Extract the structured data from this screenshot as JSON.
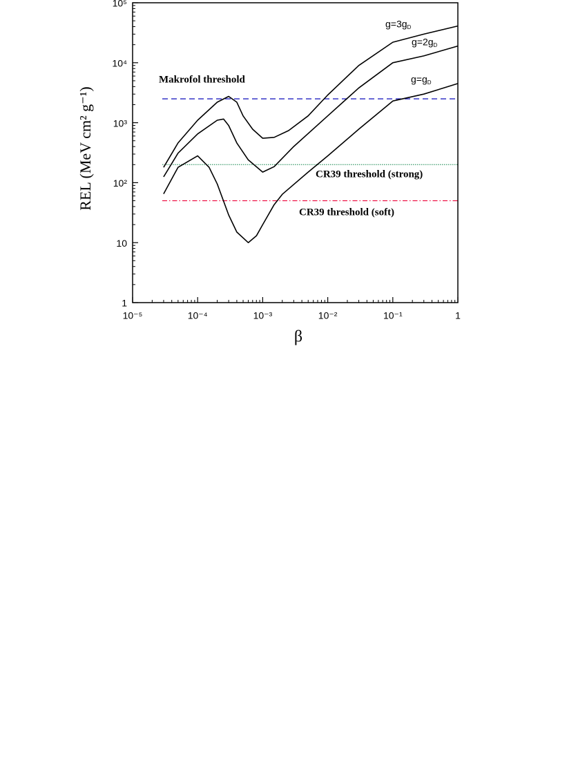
{
  "chart_data": {
    "type": "line",
    "xlabel": "β",
    "ylabel": "REL (MeV cm² g⁻¹)",
    "log_x": true,
    "log_y": true,
    "xlim": [
      1e-05,
      1
    ],
    "ylim": [
      1,
      100000
    ],
    "xticks": [
      {
        "value": 1e-05,
        "label": "10⁻⁵"
      },
      {
        "value": 0.0001,
        "label": "10⁻⁴"
      },
      {
        "value": 0.001,
        "label": "10⁻³"
      },
      {
        "value": 0.01,
        "label": "10⁻²"
      },
      {
        "value": 0.1,
        "label": "10⁻¹"
      },
      1
    ],
    "yticks": [
      1,
      10,
      {
        "value": 100,
        "label": "10²"
      },
      {
        "value": 1000,
        "label": "10³"
      },
      {
        "value": 10000,
        "label": "10⁴"
      },
      {
        "value": 100000,
        "label": "10⁵"
      }
    ],
    "series": [
      {
        "name": "g=3gD",
        "color": "#000000",
        "x": [
          3e-05,
          5e-05,
          0.0001,
          0.0002,
          0.0003,
          0.0004,
          0.0005,
          0.0007,
          0.001,
          0.0015,
          0.0025,
          0.005,
          0.01,
          0.03,
          0.1,
          0.3,
          1
        ],
        "values": [
          180,
          460,
          1100,
          2200,
          2750,
          2200,
          1300,
          780,
          550,
          570,
          740,
          1300,
          2900,
          9000,
          22000,
          30000,
          41000
        ]
      },
      {
        "name": "g=2gD",
        "color": "#000000",
        "x": [
          3e-05,
          5e-05,
          0.0001,
          0.0002,
          0.00025,
          0.0003,
          0.0004,
          0.0006,
          0.001,
          0.0015,
          0.003,
          0.01,
          0.03,
          0.1,
          0.3,
          1
        ],
        "values": [
          125,
          310,
          650,
          1100,
          1150,
          900,
          460,
          240,
          150,
          185,
          400,
          1300,
          3800,
          10000,
          13000,
          19000
        ]
      },
      {
        "name": "g=gD",
        "color": "#000000",
        "x": [
          3e-05,
          5e-05,
          0.0001,
          0.00015,
          0.0002,
          0.0003,
          0.0004,
          0.0006,
          0.0008,
          0.001,
          0.0015,
          0.002,
          0.005,
          0.01,
          0.03,
          0.1,
          0.3,
          1
        ],
        "values": [
          65,
          180,
          280,
          180,
          95,
          29,
          15,
          10,
          13,
          20,
          43,
          64,
          150,
          280,
          780,
          2300,
          3000,
          4500
        ]
      }
    ],
    "thresholds": [
      {
        "label": "Makrofol threshold",
        "value": 2500,
        "color": "#2020c0",
        "style": "dashed"
      },
      {
        "label": "CR39 threshold (strong)",
        "value": 200,
        "color": "#3a9a6a",
        "style": "dotted"
      },
      {
        "label": "CR39 threshold (soft)",
        "value": 50,
        "color": "#ee1144",
        "style": "dashdot"
      }
    ]
  }
}
